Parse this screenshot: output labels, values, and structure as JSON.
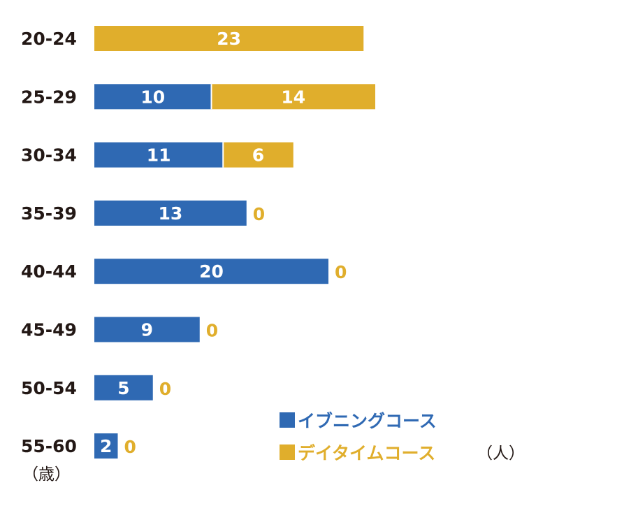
{
  "chart_data": {
    "type": "bar",
    "orientation": "horizontal",
    "stacked": true,
    "categories": [
      "20-24",
      "25-29",
      "30-34",
      "35-39",
      "40-44",
      "45-49",
      "50-54",
      "55-60"
    ],
    "series": [
      {
        "name": "イブニングコース",
        "color": "#2f69b3",
        "values": [
          0,
          10,
          11,
          13,
          20,
          9,
          5,
          2
        ]
      },
      {
        "name": "デイタイムコース",
        "color": "#e0ae2c",
        "values": [
          23,
          14,
          6,
          0,
          0,
          0,
          0,
          0
        ]
      }
    ],
    "y_unit": "（歳）",
    "x_unit": "（人）",
    "legend_position": "bottom-right",
    "grid": false
  }
}
